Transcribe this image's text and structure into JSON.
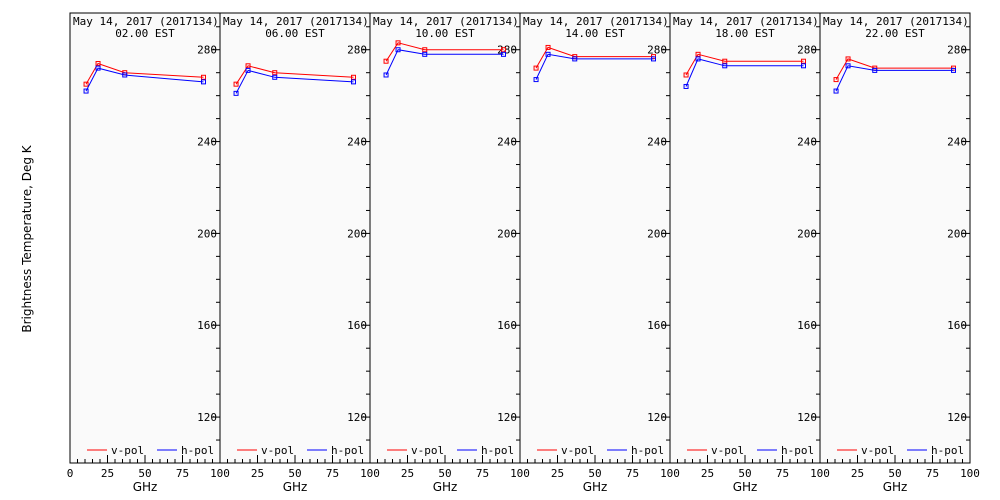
{
  "chart_data": {
    "type": "line",
    "ylabel": "Brightness Temperature, Deg K",
    "xlabel": "GHz",
    "xlim": [
      0,
      100
    ],
    "ylim": [
      100,
      296
    ],
    "x_ticks": [
      0,
      25,
      50,
      75,
      100
    ],
    "y_ticks": [
      120,
      160,
      200,
      240,
      280
    ],
    "x_tick_labels": [
      "0",
      "25",
      "50",
      "75",
      "100"
    ],
    "legend": [
      "v-pol",
      "h-pol"
    ],
    "legend_placement": "bottom",
    "colors": {
      "v-pol": "#ff0000",
      "h-pol": "#0000ff"
    },
    "x": [
      10.7,
      18.7,
      36.5,
      89.0
    ],
    "panels": [
      {
        "date": "May 14, 2017 (2017134)",
        "time": "02.00 EST",
        "series": [
          {
            "name": "v-pol",
            "values": [
              265,
              274,
              270,
              268
            ]
          },
          {
            "name": "h-pol",
            "values": [
              262,
              272,
              269,
              266
            ]
          }
        ]
      },
      {
        "date": "May 14, 2017 (2017134)",
        "time": "06.00 EST",
        "series": [
          {
            "name": "v-pol",
            "values": [
              265,
              273,
              270,
              268
            ]
          },
          {
            "name": "h-pol",
            "values": [
              261,
              271,
              268,
              266
            ]
          }
        ]
      },
      {
        "date": "May 14, 2017 (2017134)",
        "time": "10.00 EST",
        "series": [
          {
            "name": "v-pol",
            "values": [
              275,
              283,
              280,
              280
            ]
          },
          {
            "name": "h-pol",
            "values": [
              269,
              280,
              278,
              278
            ]
          }
        ]
      },
      {
        "date": "May 14, 2017 (2017134)",
        "time": "14.00 EST",
        "series": [
          {
            "name": "v-pol",
            "values": [
              272,
              281,
              277,
              277
            ]
          },
          {
            "name": "h-pol",
            "values": [
              267,
              278,
              276,
              276
            ]
          }
        ]
      },
      {
        "date": "May 14, 2017 (2017134)",
        "time": "18.00 EST",
        "series": [
          {
            "name": "v-pol",
            "values": [
              269,
              278,
              275,
              275
            ]
          },
          {
            "name": "h-pol",
            "values": [
              264,
              276,
              273,
              273
            ]
          }
        ]
      },
      {
        "date": "May 14, 2017 (2017134)",
        "time": "22.00 EST",
        "series": [
          {
            "name": "v-pol",
            "values": [
              267,
              276,
              272,
              272
            ]
          },
          {
            "name": "h-pol",
            "values": [
              262,
              273,
              271,
              271
            ]
          }
        ]
      }
    ]
  }
}
